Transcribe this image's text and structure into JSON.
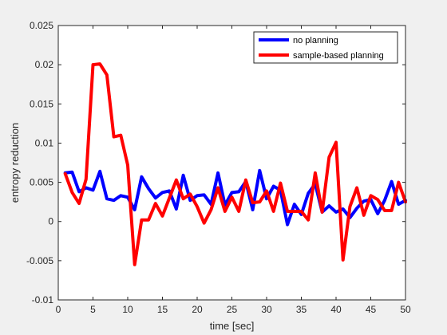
{
  "chart_data": {
    "type": "line",
    "title": "",
    "xlabel": "time [sec]",
    "ylabel": "entropy reduction",
    "xlim": [
      0,
      50
    ],
    "ylim": [
      -0.01,
      0.025
    ],
    "xticks": [
      0,
      5,
      10,
      15,
      20,
      25,
      30,
      35,
      40,
      45,
      50
    ],
    "xtick_labels": [
      "0",
      "5",
      "10",
      "15",
      "20",
      "25",
      "30",
      "35",
      "40",
      "45",
      "50"
    ],
    "yticks": [
      -0.01,
      -0.005,
      0,
      0.005,
      0.01,
      0.015,
      0.02,
      0.025
    ],
    "ytick_labels": [
      "-0.01",
      "-0.005",
      "0",
      "0.005",
      "0.01",
      "0.015",
      "0.02",
      "0.025"
    ],
    "grid": false,
    "legend_position": "top-right",
    "x": [
      1,
      2,
      3,
      4,
      5,
      6,
      7,
      8,
      9,
      10,
      11,
      12,
      13,
      14,
      15,
      16,
      17,
      18,
      19,
      20,
      21,
      22,
      23,
      24,
      25,
      26,
      27,
      28,
      29,
      30,
      31,
      32,
      33,
      34,
      35,
      36,
      37,
      38,
      39,
      40,
      41,
      42,
      43,
      44,
      45,
      46,
      47,
      48,
      49,
      50
    ],
    "series": [
      {
        "name": "no planning",
        "color": "#0000ff",
        "values": [
          0.0062,
          0.0063,
          0.0038,
          0.0043,
          0.004,
          0.0064,
          0.0029,
          0.0027,
          0.0033,
          0.0031,
          0.0015,
          0.0057,
          0.0042,
          0.003,
          0.0037,
          0.0039,
          0.0016,
          0.0059,
          0.0027,
          0.0033,
          0.0034,
          0.0022,
          0.0062,
          0.0021,
          0.0037,
          0.0038,
          0.0051,
          0.0015,
          0.0065,
          0.0029,
          0.0045,
          0.004,
          -0.0004,
          0.0022,
          0.0009,
          0.0036,
          0.0048,
          0.0012,
          0.002,
          0.0012,
          0.0016,
          0.0005,
          0.0017,
          0.0026,
          0.0028,
          0.001,
          0.0027,
          0.0051,
          0.0022,
          0.0027
        ]
      },
      {
        "name": "sample-based planning",
        "color": "#ff0000",
        "values": [
          0.0061,
          0.0037,
          0.0023,
          0.0054,
          0.02,
          0.0201,
          0.0187,
          0.0108,
          0.011,
          0.0072,
          -0.0055,
          0.0002,
          0.0002,
          0.0023,
          0.0007,
          0.003,
          0.0053,
          0.0029,
          0.0035,
          0.0019,
          -0.0002,
          0.0015,
          0.0043,
          0.0013,
          0.0031,
          0.0013,
          0.0053,
          0.0024,
          0.0025,
          0.0039,
          0.0013,
          0.0049,
          0.0013,
          0.0013,
          0.0013,
          0.0002,
          0.0062,
          0.0012,
          0.0082,
          0.0101,
          -0.0049,
          0.0019,
          0.0043,
          0.0008,
          0.0033,
          0.0028,
          0.0014,
          0.0014,
          0.005,
          0.0025
        ]
      }
    ]
  }
}
